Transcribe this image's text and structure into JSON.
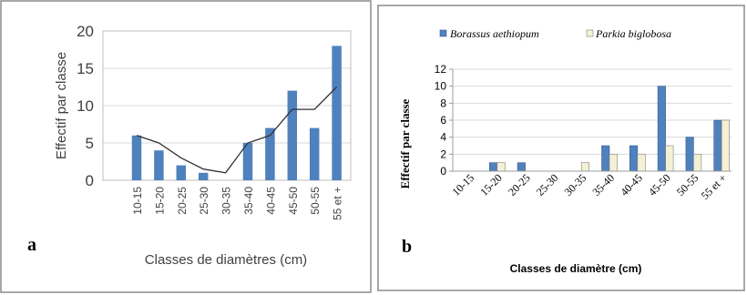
{
  "chart_data": [
    {
      "panel_label": "a",
      "type": "bar",
      "categories": [
        "10-15",
        "15-20",
        "20-25",
        "25-30",
        "30-35",
        "35-40",
        "40-45",
        "45-50",
        "50-55",
        "55 et +"
      ],
      "values": [
        6,
        4,
        2,
        1,
        0,
        5,
        7,
        12,
        7,
        18
      ],
      "trend_line": [
        6,
        5,
        3,
        1.5,
        1,
        5,
        6,
        9.5,
        9.5,
        12.5
      ],
      "xlabel": "Classes de diamètres (cm)",
      "ylabel": "Effectif par classe",
      "ylim": [
        0,
        20
      ],
      "yticks": [
        "0",
        "5",
        "10",
        "15",
        "20"
      ],
      "grid": true,
      "colors": {
        "bar": "#4f81bd",
        "line": "#333333",
        "grid": "#d9d9d9"
      }
    },
    {
      "panel_label": "b",
      "type": "bar",
      "categories": [
        "10-15",
        "15-20",
        "20-25",
        "25-30",
        "30-35",
        "35-40",
        "40-45",
        "45-50",
        "50-55",
        "55 et +"
      ],
      "series": [
        {
          "name": "Borassus aethiopum",
          "values": [
            0,
            1,
            1,
            0,
            0,
            3,
            3,
            10,
            4,
            6
          ],
          "color": "#4f81bd"
        },
        {
          "name": "Parkia biglobosa",
          "values": [
            0,
            1,
            0,
            0,
            1,
            2,
            2,
            3,
            2,
            6
          ],
          "color": "#f4f0d4"
        }
      ],
      "xlabel": "Classes de diamètre (cm)",
      "ylabel": "Effectif par classe",
      "ylim": [
        0,
        12
      ],
      "yticks": [
        "0",
        "2",
        "4",
        "6",
        "8",
        "10",
        "12"
      ],
      "grid": true,
      "legend": "top",
      "colors": {
        "grid": "#d9d9d9"
      }
    }
  ]
}
